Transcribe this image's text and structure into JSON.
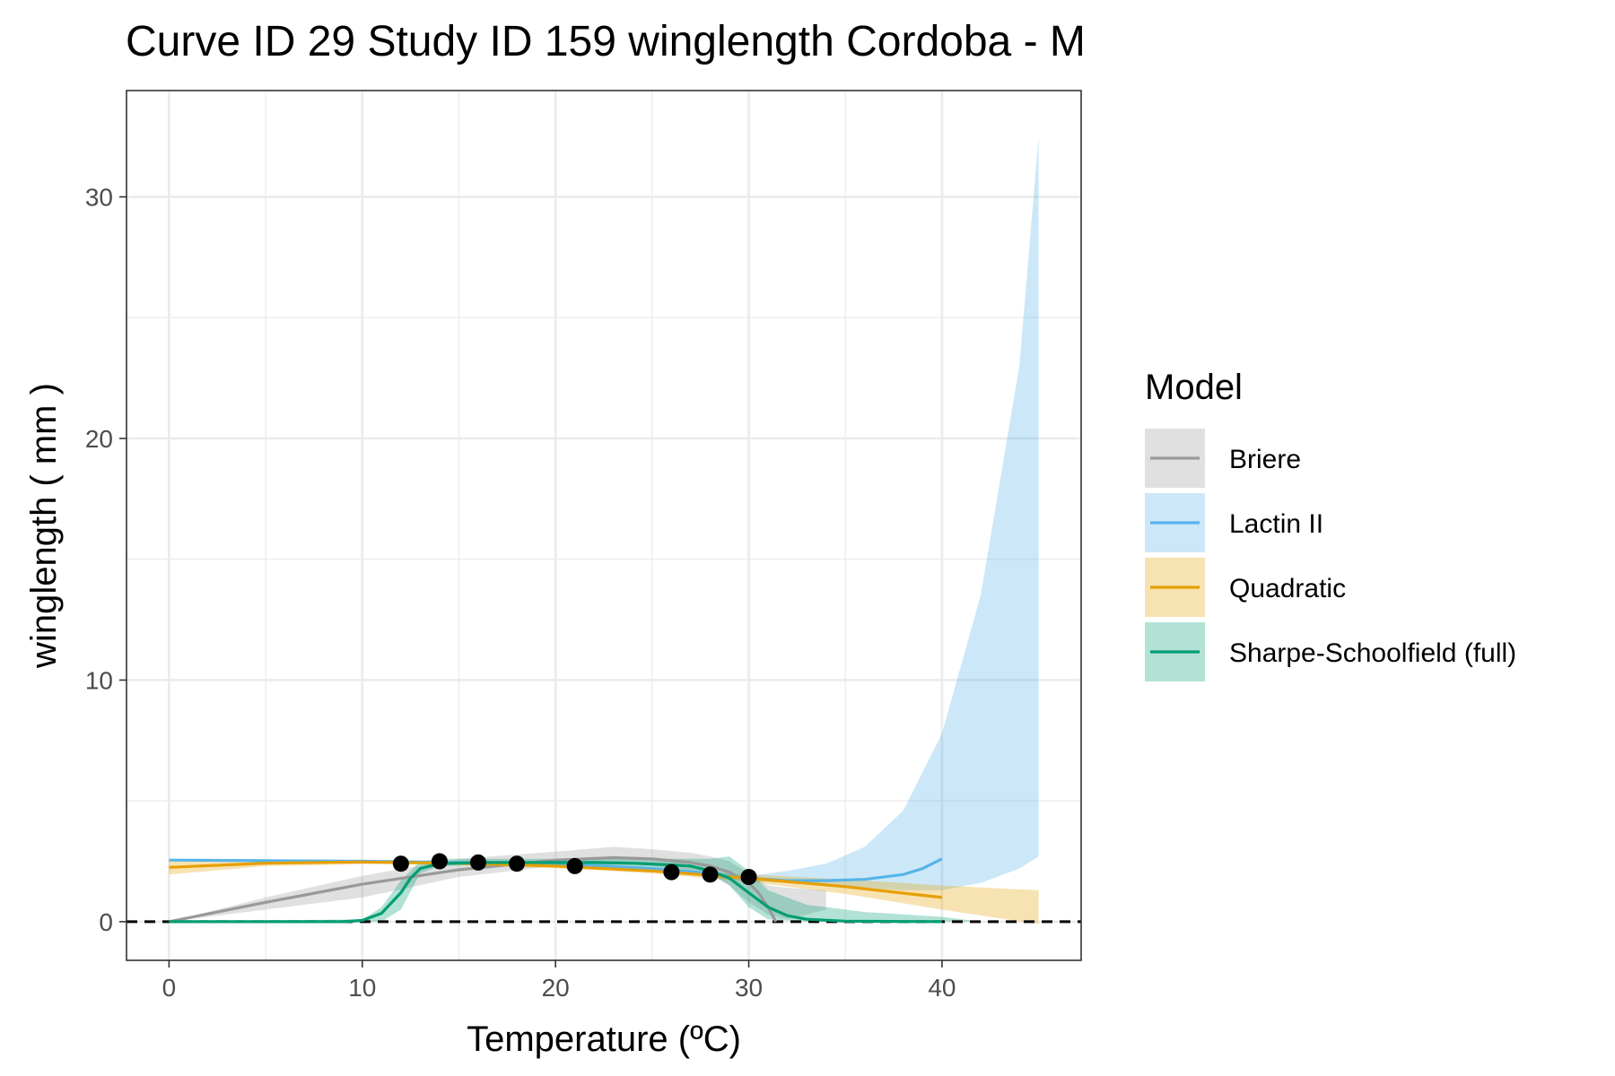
{
  "chart_data": {
    "type": "line",
    "title": "Curve ID 29 Study ID 159 winglength Cordoba - M",
    "xlabel": "Temperature (ºC)",
    "ylabel": "winglength ( mm )",
    "xlim": [
      -2.2,
      47.2
    ],
    "ylim": [
      -1.6,
      34.4
    ],
    "x_ticks": [
      0,
      10,
      20,
      30,
      40
    ],
    "y_ticks": [
      0,
      10,
      20,
      30
    ],
    "grid": true,
    "zero_line": {
      "y": 0,
      "style": "dashed"
    },
    "legend": {
      "title": "Model",
      "position": "right"
    },
    "points": [
      {
        "x": 12,
        "y": 2.4
      },
      {
        "x": 14,
        "y": 2.5
      },
      {
        "x": 16,
        "y": 2.45
      },
      {
        "x": 18,
        "y": 2.4
      },
      {
        "x": 21,
        "y": 2.3
      },
      {
        "x": 26,
        "y": 2.05
      },
      {
        "x": 28,
        "y": 1.95
      },
      {
        "x": 30,
        "y": 1.85
      }
    ],
    "series": [
      {
        "name": "Briere",
        "color": "#999999",
        "x": [
          0,
          5,
          10,
          15,
          20,
          23,
          25,
          27,
          28,
          29,
          30,
          30.5,
          31,
          31.4
        ],
        "y": [
          0,
          0.8,
          1.55,
          2.15,
          2.55,
          2.65,
          2.6,
          2.45,
          2.3,
          2.05,
          1.6,
          1.2,
          0.6,
          0
        ],
        "band_x": [
          0,
          5,
          10,
          15,
          20,
          23,
          25,
          27,
          28,
          29,
          30,
          31,
          32,
          34
        ],
        "band_lo": [
          0,
          0.5,
          1.0,
          1.85,
          2.3,
          2.35,
          2.3,
          2.1,
          1.95,
          1.5,
          0.8,
          0.3,
          0.1,
          0.5
        ],
        "band_hi": [
          0,
          1.0,
          1.9,
          2.6,
          2.9,
          3.1,
          3.0,
          2.85,
          2.7,
          2.5,
          2.0,
          1.5,
          1.4,
          1.3
        ]
      },
      {
        "name": "Lactin II",
        "color": "#56B4E9",
        "x": [
          0,
          10,
          20,
          25,
          28,
          30,
          32,
          34,
          36,
          38,
          39,
          40
        ],
        "y": [
          2.55,
          2.5,
          2.4,
          2.2,
          2.0,
          1.8,
          1.7,
          1.7,
          1.75,
          1.95,
          2.2,
          2.6
        ],
        "band_x": [
          30,
          32,
          34,
          36,
          38,
          40,
          42,
          44,
          45
        ],
        "band_lo": [
          1.7,
          1.6,
          1.5,
          1.4,
          1.3,
          1.3,
          1.6,
          2.2,
          2.7
        ],
        "band_hi": [
          1.9,
          2.1,
          2.4,
          3.1,
          4.6,
          7.8,
          13.5,
          23.0,
          32.5
        ]
      },
      {
        "name": "Quadratic",
        "color": "#E69F00",
        "x": [
          0,
          5,
          10,
          15,
          20,
          25,
          30,
          35,
          40
        ],
        "y": [
          2.25,
          2.42,
          2.47,
          2.42,
          2.3,
          2.1,
          1.8,
          1.45,
          1.0
        ],
        "band_x": [
          0,
          5,
          10,
          15,
          20,
          25,
          30,
          35,
          40,
          45
        ],
        "band_lo": [
          1.95,
          2.3,
          2.38,
          2.35,
          2.22,
          2.0,
          1.65,
          1.15,
          0.5,
          -0.1
        ],
        "band_hi": [
          2.55,
          2.55,
          2.56,
          2.5,
          2.38,
          2.2,
          1.95,
          1.75,
          1.5,
          1.3
        ]
      },
      {
        "name": "Sharpe-Schoolfield (full)",
        "color": "#009E73",
        "x": [
          0,
          5,
          9,
          10,
          11,
          12,
          12.5,
          13,
          14,
          16,
          18,
          20,
          22,
          24,
          26,
          27,
          28,
          29,
          30,
          31,
          32,
          33,
          35,
          40
        ],
        "y": [
          0,
          0,
          0,
          0.05,
          0.35,
          1.2,
          1.8,
          2.2,
          2.4,
          2.45,
          2.45,
          2.45,
          2.45,
          2.42,
          2.35,
          2.3,
          2.1,
          1.8,
          1.2,
          0.6,
          0.25,
          0.1,
          0.02,
          0
        ],
        "band_x": [
          0,
          10,
          11,
          12,
          13,
          14,
          16,
          20,
          24,
          28,
          29,
          30,
          31,
          33,
          36,
          40,
          42
        ],
        "band_lo": [
          0,
          0,
          0,
          0.5,
          2.0,
          2.3,
          2.35,
          2.35,
          2.3,
          2.0,
          1.5,
          0.6,
          0.1,
          0,
          0,
          0,
          0
        ],
        "band_hi": [
          0,
          0.1,
          0.6,
          1.7,
          2.5,
          2.6,
          2.6,
          2.6,
          2.6,
          2.6,
          2.7,
          2.1,
          1.3,
          0.7,
          0.4,
          0.2,
          0
        ]
      }
    ]
  }
}
